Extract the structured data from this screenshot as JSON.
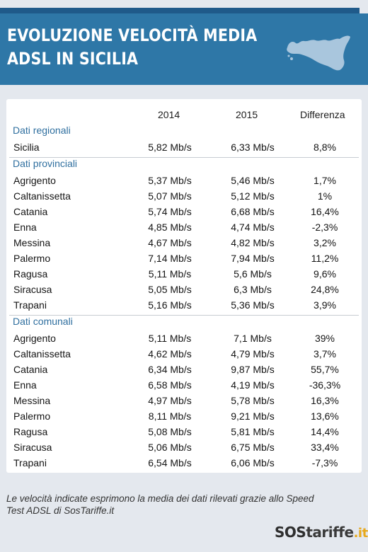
{
  "header": {
    "title_line1": "EVOLUZIONE VELOCITÀ MEDIA",
    "title_line2": "ADSL IN SICILIA",
    "map_icon": "sicily-map-icon",
    "header_color": "#2e77a7"
  },
  "chart_data": {
    "type": "table",
    "columns": [
      "",
      "2014",
      "2015",
      "Differenza"
    ],
    "sections": [
      {
        "label": "Dati regionali",
        "rows": [
          {
            "name": "Sicilia",
            "y2014": "5,82 Mb/s",
            "y2015": "6,33 Mb/s",
            "diff": "8,8%"
          }
        ]
      },
      {
        "label": "Dati provinciali",
        "rows": [
          {
            "name": "Agrigento",
            "y2014": "5,37 Mb/s",
            "y2015": "5,46 Mb/s",
            "diff": "1,7%"
          },
          {
            "name": "Caltanissetta",
            "y2014": "5,07 Mb/s",
            "y2015": "5,12 Mb/s",
            "diff": "1%"
          },
          {
            "name": "Catania",
            "y2014": "5,74 Mb/s",
            "y2015": "6,68 Mb/s",
            "diff": "16,4%"
          },
          {
            "name": "Enna",
            "y2014": "4,85 Mb/s",
            "y2015": "4,74 Mb/s",
            "diff": "-2,3%"
          },
          {
            "name": "Messina",
            "y2014": "4,67 Mb/s",
            "y2015": "4,82 Mb/s",
            "diff": "3,2%"
          },
          {
            "name": "Palermo",
            "y2014": "7,14 Mb/s",
            "y2015": "7,94 Mb/s",
            "diff": "11,2%"
          },
          {
            "name": "Ragusa",
            "y2014": "5,11 Mb/s",
            "y2015": "5,6 Mb/s",
            "diff": "9,6%"
          },
          {
            "name": "Siracusa",
            "y2014": "5,05 Mb/s",
            "y2015": "6,3 Mb/s",
            "diff": "24,8%"
          },
          {
            "name": "Trapani",
            "y2014": "5,16 Mb/s",
            "y2015": "5,36 Mb/s",
            "diff": "3,9%"
          }
        ]
      },
      {
        "label": "Dati comunali",
        "rows": [
          {
            "name": "Agrigento",
            "y2014": "5,11 Mb/s",
            "y2015": "7,1 Mb/s",
            "diff": "39%"
          },
          {
            "name": "Caltanissetta",
            "y2014": "4,62 Mb/s",
            "y2015": "4,79 Mb/s",
            "diff": "3,7%"
          },
          {
            "name": "Catania",
            "y2014": "6,34 Mb/s",
            "y2015": "9,87 Mb/s",
            "diff": "55,7%"
          },
          {
            "name": "Enna",
            "y2014": "6,58 Mb/s",
            "y2015": "4,19 Mb/s",
            "diff": "-36,3%"
          },
          {
            "name": "Messina",
            "y2014": "4,97 Mb/s",
            "y2015": "5,78 Mb/s",
            "diff": "16,3%"
          },
          {
            "name": "Palermo",
            "y2014": "8,11 Mb/s",
            "y2015": "9,21 Mb/s",
            "diff": "13,6%"
          },
          {
            "name": "Ragusa",
            "y2014": "5,08 Mb/s",
            "y2015": "5,81 Mb/s",
            "diff": "14,4%"
          },
          {
            "name": "Siracusa",
            "y2014": "5,06 Mb/s",
            "y2015": "6,75 Mb/s",
            "diff": "33,4%"
          },
          {
            "name": "Trapani",
            "y2014": "6,54 Mb/s",
            "y2015": "6,06 Mb/s",
            "diff": "-7,3%"
          }
        ]
      }
    ]
  },
  "footer": {
    "note": "Le velocità indicate esprimono la media dei dati rilevati grazie allo Speed Test ADSL di SosTariffe.it",
    "logo_so": "SOS",
    "logo_rest": "tariffe",
    "logo_tld": ".it",
    "logo_accent": "#e8a91c"
  }
}
